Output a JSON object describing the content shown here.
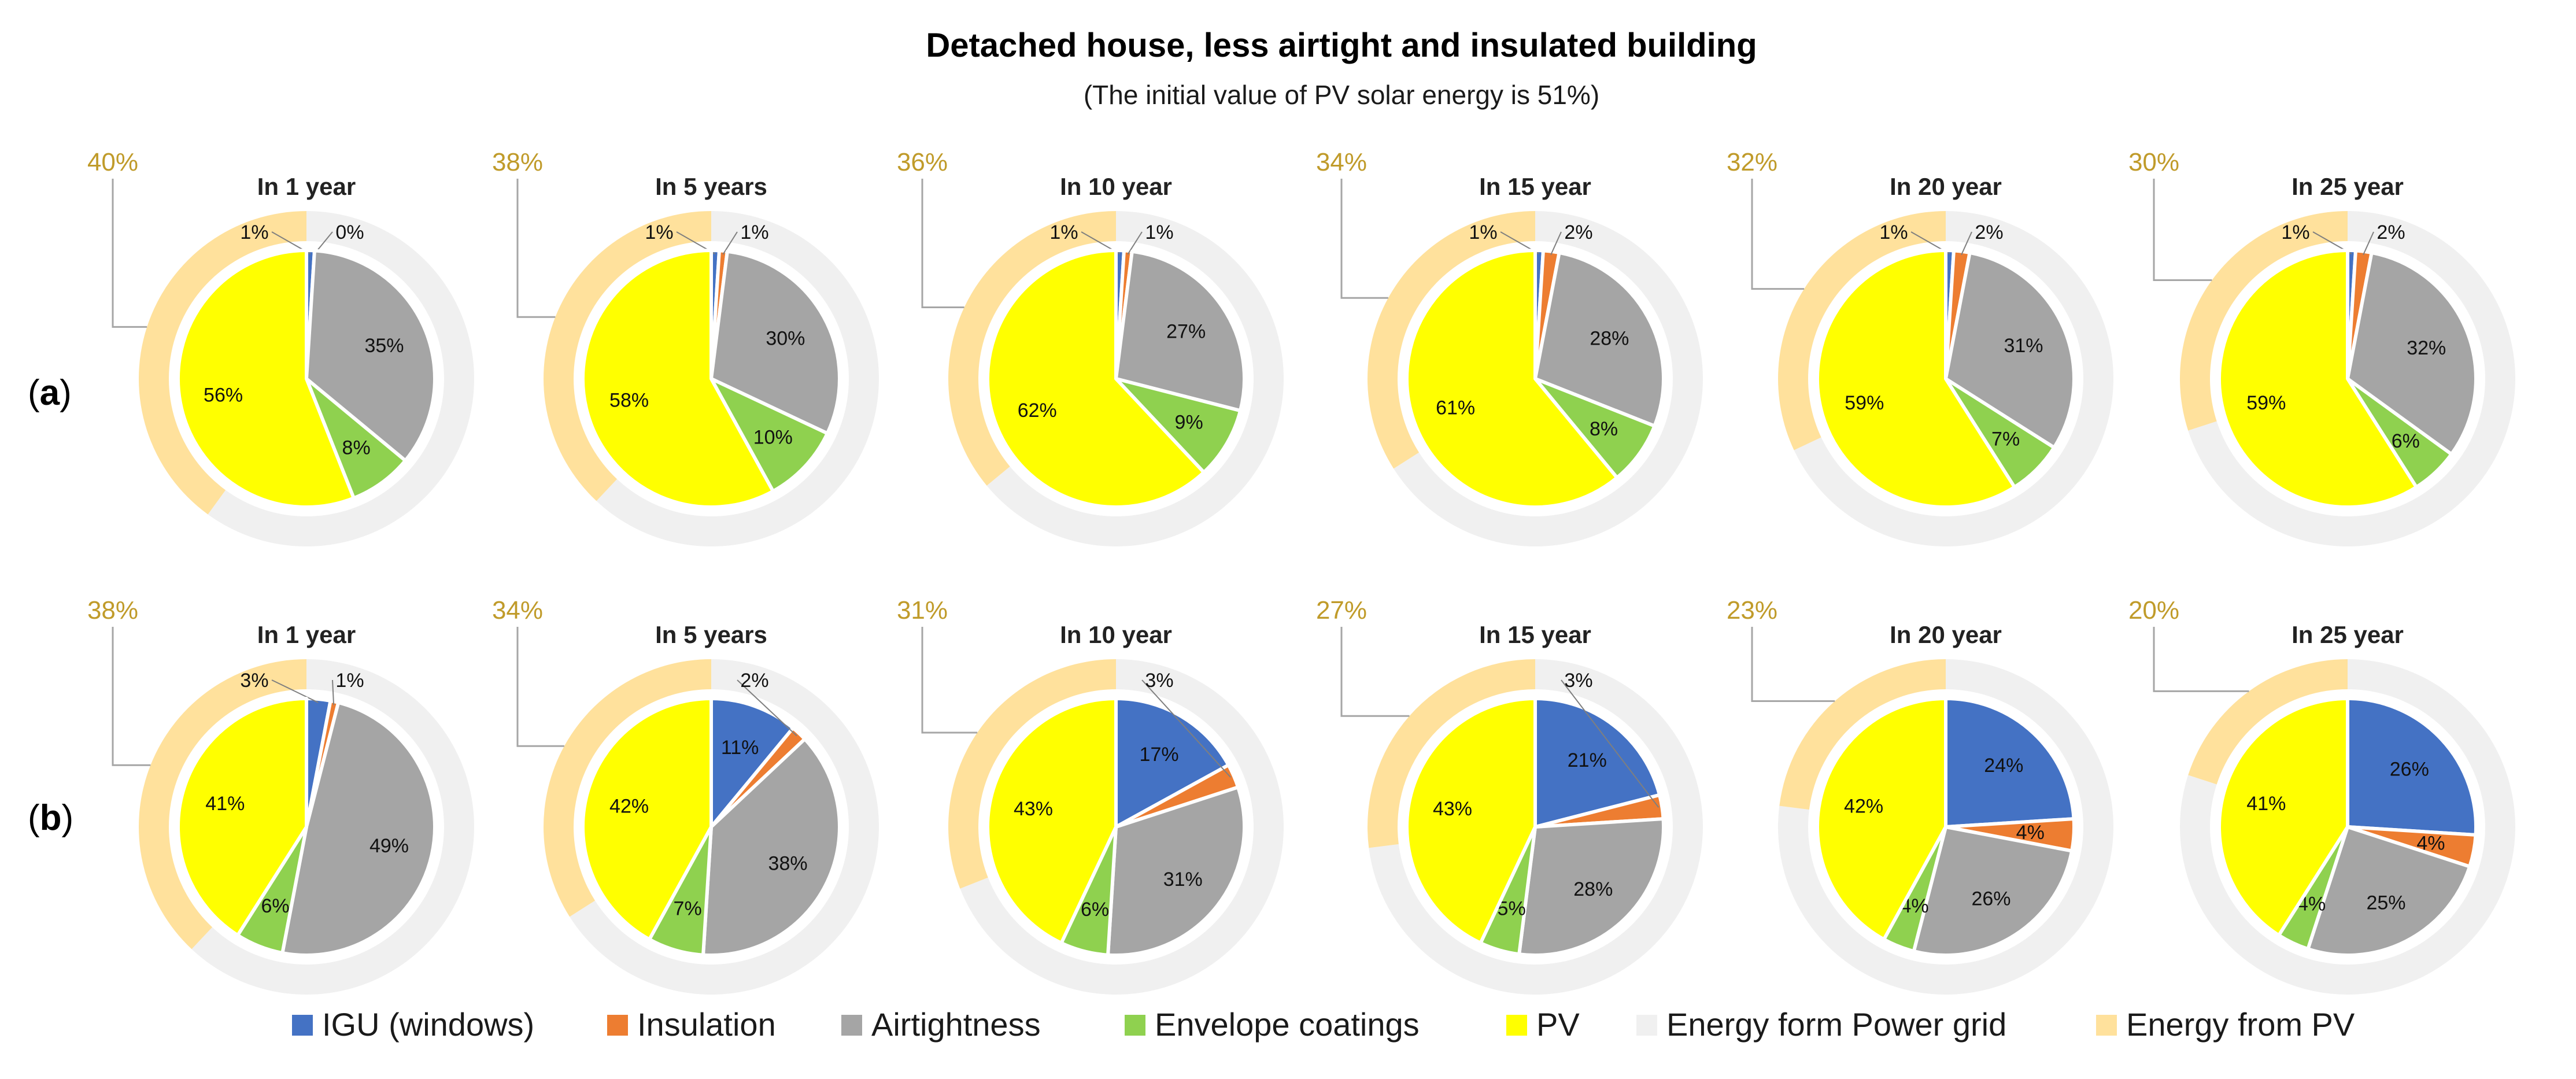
{
  "title": "Detached house, less airtight and insulated building",
  "subtitle": "(The initial value of PV solar energy is 51%)",
  "rows": [
    {
      "label_prefix": "(",
      "label_letter": "a",
      "label_suffix": ")"
    },
    {
      "label_prefix": "(",
      "label_letter": "b",
      "label_suffix": ")"
    }
  ],
  "legend": [
    {
      "label": "IGU (windows)",
      "color": "#4472c4"
    },
    {
      "label": "Insulation",
      "color": "#ed7d31"
    },
    {
      "label": "Airtightness",
      "color": "#a5a5a5"
    },
    {
      "label": "Envelope coatings",
      "color": "#8fd14f"
    },
    {
      "label": "PV",
      "color": "#ffff00"
    },
    {
      "label": "Energy form Power grid",
      "color": "#f0f0f0"
    },
    {
      "label": "Energy from PV",
      "color": "#ffe19c"
    }
  ],
  "chart_data": [
    {
      "type": "pie",
      "row": "a",
      "title": "In 1 year",
      "outer": {
        "pv": 40,
        "grid": 60
      },
      "outer_label": "40%",
      "inner": [
        {
          "series": "IGU (windows)",
          "value": 1,
          "label": "1%"
        },
        {
          "series": "Insulation",
          "value": 0,
          "label": "0%"
        },
        {
          "series": "Airtightness",
          "value": 35,
          "label": "35%"
        },
        {
          "series": "Envelope coatings",
          "value": 8,
          "label": "8%"
        },
        {
          "series": "PV",
          "value": 56,
          "label": "56%"
        }
      ]
    },
    {
      "type": "pie",
      "row": "a",
      "title": "In 5 years",
      "outer": {
        "pv": 38,
        "grid": 62
      },
      "outer_label": "38%",
      "inner": [
        {
          "series": "IGU (windows)",
          "value": 1,
          "label": "1%"
        },
        {
          "series": "Insulation",
          "value": 1,
          "label": "1%"
        },
        {
          "series": "Airtightness",
          "value": 30,
          "label": "30%"
        },
        {
          "series": "Envelope coatings",
          "value": 10,
          "label": "10%"
        },
        {
          "series": "PV",
          "value": 58,
          "label": "58%"
        }
      ]
    },
    {
      "type": "pie",
      "row": "a",
      "title": "In 10 year",
      "outer": {
        "pv": 36,
        "grid": 64
      },
      "outer_label": "36%",
      "inner": [
        {
          "series": "IGU (windows)",
          "value": 1,
          "label": "1%"
        },
        {
          "series": "Insulation",
          "value": 1,
          "label": "1%"
        },
        {
          "series": "Airtightness",
          "value": 27,
          "label": "27%"
        },
        {
          "series": "Envelope coatings",
          "value": 9,
          "label": "9%"
        },
        {
          "series": "PV",
          "value": 62,
          "label": "62%"
        }
      ]
    },
    {
      "type": "pie",
      "row": "a",
      "title": "In 15 year",
      "outer": {
        "pv": 34,
        "grid": 66
      },
      "outer_label": "34%",
      "inner": [
        {
          "series": "IGU (windows)",
          "value": 1,
          "label": "1%"
        },
        {
          "series": "Insulation",
          "value": 2,
          "label": "2%"
        },
        {
          "series": "Airtightness",
          "value": 28,
          "label": "28%"
        },
        {
          "series": "Envelope coatings",
          "value": 8,
          "label": "8%"
        },
        {
          "series": "PV",
          "value": 61,
          "label": "61%"
        }
      ]
    },
    {
      "type": "pie",
      "row": "a",
      "title": "In 20 year",
      "outer": {
        "pv": 32,
        "grid": 68
      },
      "outer_label": "32%",
      "inner": [
        {
          "series": "IGU (windows)",
          "value": 1,
          "label": "1%"
        },
        {
          "series": "Insulation",
          "value": 2,
          "label": "2%"
        },
        {
          "series": "Airtightness",
          "value": 31,
          "label": "31%"
        },
        {
          "series": "Envelope coatings",
          "value": 7,
          "label": "7%"
        },
        {
          "series": "PV",
          "value": 59,
          "label": "59%"
        }
      ]
    },
    {
      "type": "pie",
      "row": "a",
      "title": "In 25 year",
      "outer": {
        "pv": 30,
        "grid": 70
      },
      "outer_label": "30%",
      "inner": [
        {
          "series": "IGU (windows)",
          "value": 1,
          "label": "1%"
        },
        {
          "series": "Insulation",
          "value": 2,
          "label": "2%"
        },
        {
          "series": "Airtightness",
          "value": 32,
          "label": "32%"
        },
        {
          "series": "Envelope coatings",
          "value": 6,
          "label": "6%"
        },
        {
          "series": "PV",
          "value": 59,
          "label": "59%"
        }
      ]
    },
    {
      "type": "pie",
      "row": "b",
      "title": "In 1 year",
      "outer": {
        "pv": 38,
        "grid": 62
      },
      "outer_label": "38%",
      "inner": [
        {
          "series": "IGU (windows)",
          "value": 3,
          "label": "3%"
        },
        {
          "series": "Insulation",
          "value": 1,
          "label": "1%"
        },
        {
          "series": "Airtightness",
          "value": 49,
          "label": "49%"
        },
        {
          "series": "Envelope coatings",
          "value": 6,
          "label": "6%"
        },
        {
          "series": "PV",
          "value": 41,
          "label": "41%"
        }
      ]
    },
    {
      "type": "pie",
      "row": "b",
      "title": "In 5 years",
      "outer": {
        "pv": 34,
        "grid": 66
      },
      "outer_label": "34%",
      "inner": [
        {
          "series": "IGU (windows)",
          "value": 11,
          "label": "11%"
        },
        {
          "series": "Insulation",
          "value": 2,
          "label": "2%"
        },
        {
          "series": "Airtightness",
          "value": 38,
          "label": "38%"
        },
        {
          "series": "Envelope coatings",
          "value": 7,
          "label": "7%"
        },
        {
          "series": "PV",
          "value": 42,
          "label": "42%"
        }
      ]
    },
    {
      "type": "pie",
      "row": "b",
      "title": "In 10 year",
      "outer": {
        "pv": 31,
        "grid": 69
      },
      "outer_label": "31%",
      "inner": [
        {
          "series": "IGU (windows)",
          "value": 17,
          "label": "17%"
        },
        {
          "series": "Insulation",
          "value": 3,
          "label": "3%"
        },
        {
          "series": "Airtightness",
          "value": 31,
          "label": "31%"
        },
        {
          "series": "Envelope coatings",
          "value": 6,
          "label": "6%"
        },
        {
          "series": "PV",
          "value": 43,
          "label": "43%"
        }
      ]
    },
    {
      "type": "pie",
      "row": "b",
      "title": "In 15 year",
      "outer": {
        "pv": 27,
        "grid": 73
      },
      "outer_label": "27%",
      "inner": [
        {
          "series": "IGU (windows)",
          "value": 21,
          "label": "21%"
        },
        {
          "series": "Insulation",
          "value": 3,
          "label": "3%"
        },
        {
          "series": "Airtightness",
          "value": 28,
          "label": "28%"
        },
        {
          "series": "Envelope coatings",
          "value": 5,
          "label": "5%"
        },
        {
          "series": "PV",
          "value": 43,
          "label": "43%"
        }
      ]
    },
    {
      "type": "pie",
      "row": "b",
      "title": "In 20 year",
      "outer": {
        "pv": 23,
        "grid": 77
      },
      "outer_label": "23%",
      "inner": [
        {
          "series": "IGU (windows)",
          "value": 24,
          "label": "24%"
        },
        {
          "series": "Insulation",
          "value": 4,
          "label": "4%"
        },
        {
          "series": "Airtightness",
          "value": 26,
          "label": "26%"
        },
        {
          "series": "Envelope coatings",
          "value": 4,
          "label": "4%"
        },
        {
          "series": "PV",
          "value": 42,
          "label": "42%"
        }
      ]
    },
    {
      "type": "pie",
      "row": "b",
      "title": "In 25 year",
      "outer": {
        "pv": 20,
        "grid": 80
      },
      "outer_label": "20%",
      "inner": [
        {
          "series": "IGU (windows)",
          "value": 26,
          "label": "26%"
        },
        {
          "series": "Insulation",
          "value": 4,
          "label": "4%"
        },
        {
          "series": "Airtightness",
          "value": 25,
          "label": "25%"
        },
        {
          "series": "Envelope coatings",
          "value": 4,
          "label": "4%"
        },
        {
          "series": "PV",
          "value": 41,
          "label": "41%"
        }
      ]
    }
  ]
}
